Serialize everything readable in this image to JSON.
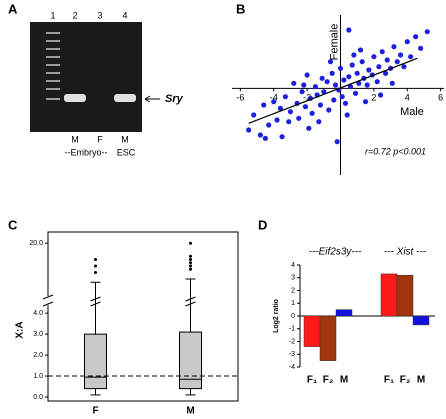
{
  "gel": {
    "panel": "A",
    "lanes": [
      "1",
      "2",
      "3",
      "4"
    ],
    "samples": [
      "M",
      "F",
      "M"
    ],
    "group_labels": [
      "--Embryo--",
      "ESC"
    ],
    "band_label": "Sry"
  },
  "chart_data": [
    {
      "type": "scatter",
      "panel": "B",
      "x_label": "Male",
      "y_label": "Female",
      "annotation": "r=0.72 p<0.001",
      "color": "#1f1fe0",
      "xlim": [
        -6.5,
        6.2
      ],
      "ylim": [
        -5.2,
        4.4
      ],
      "xticks": [
        -6,
        -4,
        -2,
        2,
        4,
        6
      ],
      "trendline": {
        "x": [
          -5.5,
          4.6
        ],
        "y": [
          -2.1,
          1.8
        ]
      },
      "x": [
        -5.5,
        -5.2,
        -4.8,
        -4.6,
        -4.3,
        -4,
        -3.8,
        -3.6,
        -3.3,
        -3.1,
        -3,
        -2.8,
        -2.6,
        -2.5,
        -2.3,
        -2.1,
        -2,
        -1.8,
        -1.7,
        -1.5,
        -1.4,
        -1.2,
        -1.1,
        -1,
        -0.8,
        -0.7,
        -0.5,
        -0.4,
        -0.3,
        -0.1,
        0,
        0.1,
        0.2,
        0.3,
        0.5,
        0.6,
        0.7,
        0.9,
        1,
        1.1,
        1.3,
        1.4,
        1.6,
        1.7,
        1.9,
        2,
        2.2,
        2.3,
        2.5,
        2.7,
        2.8,
        3,
        3.2,
        3.4,
        3.6,
        3.8,
        4,
        4.2,
        4.5,
        4.8,
        5.2,
        -3.5,
        -2.2,
        -1.3,
        -0.6,
        0.4,
        1.2,
        2.4,
        3.1,
        -0.2,
        0.8,
        -1.9,
        1.5,
        -4.5,
        0.5
      ],
      "y": [
        -2.5,
        -1.6,
        -2.8,
        -1.0,
        -2.2,
        -0.8,
        -1.9,
        -1.2,
        -0.5,
        -2.0,
        -1.4,
        0.3,
        -0.9,
        -1.8,
        -0.2,
        -1.1,
        0.8,
        -0.6,
        -1.5,
        0.1,
        -0.4,
        -1.0,
        0.6,
        -0.2,
        0.4,
        -1.3,
        0.9,
        -0.7,
        0.2,
        -0.1,
        1.2,
        -0.5,
        0.5,
        -0.9,
        0.7,
        0.1,
        1.4,
        -0.3,
        0.9,
        0.3,
        1.6,
        0.6,
        0.2,
        1.1,
        0.8,
        1.9,
        0.4,
        1.3,
        2.2,
        0.9,
        1.7,
        1.2,
        2.5,
        1.6,
        2.0,
        1.3,
        2.8,
        1.9,
        3.1,
        2.4,
        3.4,
        -2.9,
        0.2,
        -2.0,
        1.6,
        -1.6,
        2.3,
        -0.4,
        0.3,
        -3.2,
        2.0,
        -2.4,
        -0.8,
        -3.0,
        3.5
      ]
    },
    {
      "type": "box",
      "panel": "C",
      "y_label": "X:A",
      "color": "#c8c8c8",
      "reference_line": 1,
      "ylim": [
        0,
        4.2
      ],
      "upper_ylim": [
        5,
        21
      ],
      "yticks": [
        {
          "value": 0,
          "label": "0.0"
        },
        {
          "value": 1,
          "label": "1.0"
        },
        {
          "value": 2,
          "label": "2.0"
        },
        {
          "value": 3,
          "label": "3.0"
        },
        {
          "value": 4,
          "label": "4.0"
        }
      ],
      "upper_yticks": [
        {
          "value": 20,
          "label": "20.0"
        }
      ],
      "categories": [
        "F",
        "M"
      ],
      "boxes": [
        {
          "whislo": 0.1,
          "q1": 0.4,
          "med": 0.95,
          "q3": 3.0,
          "whishi": 8,
          "fliers": [
            11,
            13,
            15
          ]
        },
        {
          "whislo": 0.1,
          "q1": 0.4,
          "med": 0.85,
          "q3": 3.1,
          "whishi": 9,
          "fliers": [
            12,
            13,
            14,
            15,
            16,
            20
          ]
        }
      ]
    },
    {
      "type": "bar",
      "panel": "D",
      "y_label": "Log2 ratio",
      "ylim": [
        -4,
        4
      ],
      "yticks": [
        -4,
        -3,
        -2,
        -1,
        0,
        1,
        2,
        3,
        4
      ],
      "groups": [
        "---Eif2s3y---",
        "--- Xist ---"
      ],
      "categories": [
        "F₁",
        "F₂",
        "M",
        "F₁",
        "F₂",
        "M"
      ],
      "values": [
        -2.4,
        -3.5,
        0.5,
        3.3,
        3.2,
        -0.7
      ],
      "colors": [
        "#ff1a1a",
        "#a0360f",
        "#1010e0",
        "#ff1a1a",
        "#a0360f",
        "#1010e0"
      ]
    }
  ]
}
